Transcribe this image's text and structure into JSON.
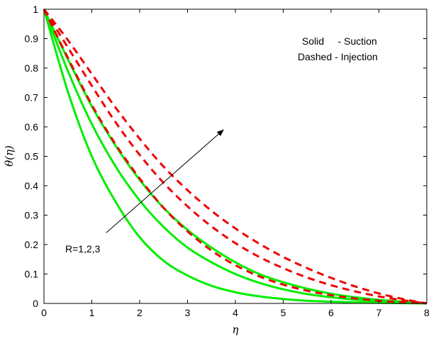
{
  "chart_data": {
    "type": "line",
    "title": "",
    "xlabel": "η",
    "ylabel": "θ(η)",
    "xlim": [
      0,
      8
    ],
    "ylim": [
      0,
      1
    ],
    "xticks": [
      "0",
      "1",
      "2",
      "3",
      "4",
      "5",
      "6",
      "7",
      "8"
    ],
    "yticks": [
      "0",
      "0.1",
      "0.2",
      "0.3",
      "0.4",
      "0.5",
      "0.6",
      "0.7",
      "0.8",
      "0.9",
      "1"
    ],
    "grid": false,
    "legend_text": [
      "Solid     - Suction",
      "Dashed - Injection"
    ],
    "annotation": {
      "text": "R=1,2,3",
      "arrow_from": [
        1.3,
        0.24
      ],
      "arrow_to": [
        3.75,
        0.59
      ]
    },
    "x": [
      0,
      0.5,
      1,
      1.5,
      2,
      2.5,
      3,
      3.5,
      4,
      4.5,
      5,
      5.5,
      6,
      6.5,
      7,
      7.5,
      8
    ],
    "series": [
      {
        "style": "solid",
        "color": "#00ee00",
        "values": [
          1.0,
          0.72,
          0.5,
          0.345,
          0.225,
          0.145,
          0.095,
          0.06,
          0.038,
          0.024,
          0.015,
          0.009,
          0.006,
          0.004,
          0.002,
          0.001,
          0.0
        ]
      },
      {
        "style": "solid",
        "color": "#00ee00",
        "values": [
          1.0,
          0.79,
          0.61,
          0.465,
          0.35,
          0.26,
          0.19,
          0.14,
          0.1,
          0.07,
          0.048,
          0.032,
          0.021,
          0.013,
          0.008,
          0.004,
          0.0
        ]
      },
      {
        "style": "solid",
        "color": "#00ee00",
        "values": [
          1.0,
          0.83,
          0.67,
          0.535,
          0.42,
          0.325,
          0.25,
          0.19,
          0.14,
          0.1,
          0.072,
          0.05,
          0.033,
          0.021,
          0.012,
          0.006,
          0.0
        ]
      },
      {
        "style": "dashed",
        "color": "#ee0000",
        "values": [
          1.0,
          0.835,
          0.675,
          0.54,
          0.425,
          0.325,
          0.245,
          0.18,
          0.13,
          0.092,
          0.064,
          0.043,
          0.028,
          0.017,
          0.009,
          0.004,
          0.0
        ]
      },
      {
        "style": "dashed",
        "color": "#ee0000",
        "values": [
          1.0,
          0.87,
          0.74,
          0.615,
          0.505,
          0.41,
          0.33,
          0.262,
          0.205,
          0.158,
          0.12,
          0.088,
          0.062,
          0.041,
          0.024,
          0.011,
          0.0
        ]
      },
      {
        "style": "dashed",
        "color": "#ee0000",
        "values": [
          1.0,
          0.895,
          0.78,
          0.665,
          0.56,
          0.465,
          0.385,
          0.315,
          0.255,
          0.203,
          0.158,
          0.12,
          0.087,
          0.058,
          0.034,
          0.015,
          0.0
        ]
      }
    ]
  }
}
